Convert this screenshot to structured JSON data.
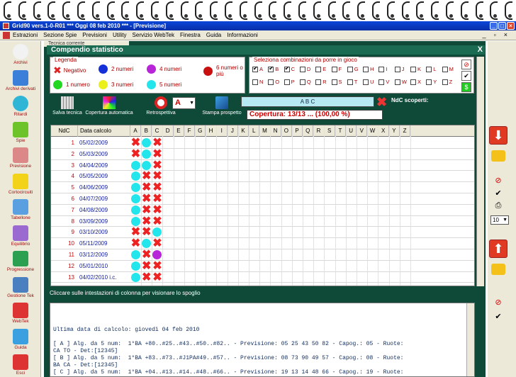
{
  "window": {
    "title": "Grid90 vers.1-0-R01   ***   Oggi 08 feb 2010   ***  - [Previsione]"
  },
  "menu": [
    "Estrazioni",
    "Sezione Spie",
    "Previsioni",
    "Utility",
    "Servizio WebTek",
    "Finestra",
    "Guida",
    "Informazioni"
  ],
  "tab_label": "Tecnica corrente",
  "sidebar": [
    "Archivi",
    "Archivi derivati",
    "Ritardi",
    "Spie",
    "Previsione",
    "Cortocircuiti",
    "Tabellone",
    "Equilibrio",
    "Progressione",
    "Gestione Tek",
    "WebTek",
    "Guida",
    "Esci"
  ],
  "compendio_title": "Compendio statistico",
  "close_x": "X",
  "legend": {
    "title": "Legenda",
    "items": [
      {
        "label": "Negativo",
        "color": "#e22222",
        "kind": "x"
      },
      {
        "label": "1 numero",
        "color": "#22d622",
        "kind": "dot"
      },
      {
        "label": "2 numeri",
        "color": "#1530d8",
        "kind": "dot"
      },
      {
        "label": "3 numeri",
        "color": "#e9f01c",
        "kind": "dot"
      },
      {
        "label": "4 numeri",
        "color": "#b825d8",
        "kind": "dot"
      },
      {
        "label": "5 numeri",
        "color": "#22e6ec",
        "kind": "dot"
      },
      {
        "label": "6 numeri o più",
        "color": "#c81010",
        "kind": "dot"
      }
    ]
  },
  "selection": {
    "title": "Seleziona combinazioni da porre in gioco",
    "letters": [
      "A",
      "B",
      "C",
      "D",
      "E",
      "F",
      "G",
      "H",
      "I",
      "J",
      "K",
      "L",
      "M",
      "N",
      "O",
      "P",
      "Q",
      "R",
      "S",
      "T",
      "U",
      "V",
      "W",
      "X",
      "Y",
      "Z"
    ],
    "checked": [
      "A",
      "B",
      "C"
    ]
  },
  "toolbar": {
    "salva": "Salva tecnica",
    "copertura": "Copertura automatica",
    "retro": "Retrospettiva",
    "stampa": "Stampa prospetto",
    "dropdown_value": "A",
    "abc": "A B C",
    "ndc_scoperti": "NdC scoperti:",
    "coverage": "Copertura: 13/13 ... (100,00 %)"
  },
  "grid": {
    "col_ndc": "NdC",
    "col_date": "Data calcolo",
    "letters": [
      "A",
      "B",
      "C",
      "D",
      "E",
      "F",
      "G",
      "H",
      "I",
      "J",
      "K",
      "L",
      "M",
      "N",
      "O",
      "P",
      "Q",
      "R",
      "S",
      "T",
      "U",
      "V",
      "W",
      "X",
      "Y",
      "Z"
    ],
    "rows": [
      {
        "n": "1",
        "date": "05/02/2009",
        "marks": [
          "x",
          "o5",
          "x"
        ]
      },
      {
        "n": "2",
        "date": "05/03/2009",
        "marks": [
          "x",
          "o5",
          "x"
        ]
      },
      {
        "n": "3",
        "date": "04/04/2009",
        "marks": [
          "o5",
          "o5",
          "x"
        ]
      },
      {
        "n": "4",
        "date": "05/05/2009",
        "marks": [
          "o5",
          "x",
          "x"
        ]
      },
      {
        "n": "5",
        "date": "04/06/2009",
        "marks": [
          "o5",
          "x",
          "x"
        ]
      },
      {
        "n": "6",
        "date": "04/07/2009",
        "marks": [
          "o5",
          "x",
          "x"
        ]
      },
      {
        "n": "7",
        "date": "04/08/2009",
        "marks": [
          "o5",
          "x",
          "x"
        ]
      },
      {
        "n": "8",
        "date": "03/09/2009",
        "marks": [
          "o5",
          "x",
          "x"
        ]
      },
      {
        "n": "9",
        "date": "03/10/2009",
        "marks": [
          "x",
          "x",
          "o5"
        ]
      },
      {
        "n": "10",
        "date": "05/11/2009",
        "marks": [
          "x",
          "o5",
          "x"
        ]
      },
      {
        "n": "11",
        "date": "03/12/2009",
        "marks": [
          "o5",
          "x",
          "o4"
        ]
      },
      {
        "n": "12",
        "date": "05/01/2010",
        "marks": [
          "o5",
          "x",
          "x"
        ]
      },
      {
        "n": "13",
        "date": "04/02/2010 i.c.",
        "marks": [
          "o5",
          "x",
          "x"
        ]
      }
    ]
  },
  "hint": "Cliccare sulle intestazioni di colonna per visionare lo spoglio",
  "report": [
    "Ultima data di calcolo: giovedì 04 feb 2010",
    "",
    "[ A ] Alg. da 5 num:  1°BA +80..#25..#43..#50..#82.. - Previsione: 05 25 43 50 82 - Capog.: 05 - Ruote:",
    "CA TO - Det:[12345]",
    "[ B ] Alg. da 5 num:  1°BA +83..#73..#J1PA#49..#57.. - Previsione: 08 73 90 49 57 - Capog.: 08 - Ruote:",
    "BA CA - Det:[12345]",
    "[ C ] Alg. da 5 num:  1°BA +04..#13..#14..#48..#66.. - Previsione: 19 13 14 48 66 - Capog.: 19 - Ruote:",
    "BA CA - Det:[12345]"
  ],
  "spin_value": "10"
}
